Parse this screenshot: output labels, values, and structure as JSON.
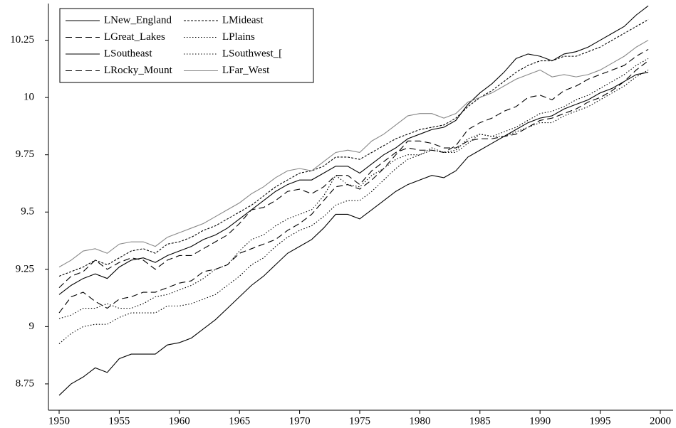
{
  "chart_data": {
    "type": "line",
    "x": [
      1950,
      1951,
      1952,
      1953,
      1954,
      1955,
      1956,
      1957,
      1958,
      1959,
      1960,
      1961,
      1962,
      1963,
      1964,
      1965,
      1966,
      1967,
      1968,
      1969,
      1970,
      1971,
      1972,
      1973,
      1974,
      1975,
      1976,
      1977,
      1978,
      1979,
      1980,
      1981,
      1982,
      1983,
      1984,
      1985,
      1986,
      1987,
      1988,
      1989,
      1990,
      1991,
      1992,
      1993,
      1994,
      1995,
      1996,
      1997,
      1998,
      1999
    ],
    "series": [
      {
        "name": "LNew_England",
        "color": "#000000",
        "style": "solid",
        "values": [
          9.14,
          9.18,
          9.21,
          9.23,
          9.21,
          9.26,
          9.29,
          9.3,
          9.28,
          9.31,
          9.33,
          9.35,
          9.38,
          9.4,
          9.43,
          9.47,
          9.51,
          9.55,
          9.59,
          9.62,
          9.64,
          9.64,
          9.67,
          9.7,
          9.7,
          9.67,
          9.71,
          9.75,
          9.78,
          9.82,
          9.84,
          9.86,
          9.87,
          9.9,
          9.97,
          10.02,
          10.06,
          10.11,
          10.17,
          10.19,
          10.18,
          10.16,
          10.19,
          10.2,
          10.22,
          10.25,
          10.28,
          10.31,
          10.36,
          10.4
        ]
      },
      {
        "name": "LMideast",
        "color": "#000000",
        "style": "finedash",
        "values": [
          9.22,
          9.24,
          9.26,
          9.29,
          9.27,
          9.3,
          9.33,
          9.34,
          9.32,
          9.36,
          9.37,
          9.39,
          9.42,
          9.44,
          9.47,
          9.5,
          9.53,
          9.57,
          9.61,
          9.64,
          9.67,
          9.68,
          9.7,
          9.74,
          9.74,
          9.73,
          9.76,
          9.79,
          9.82,
          9.84,
          9.86,
          9.87,
          9.88,
          9.91,
          9.96,
          10.0,
          10.03,
          10.07,
          10.11,
          10.14,
          10.16,
          10.16,
          10.18,
          10.18,
          10.2,
          10.22,
          10.25,
          10.28,
          10.31,
          10.34
        ]
      },
      {
        "name": "LGreat_Lakes",
        "color": "#000000",
        "style": "dashed",
        "values": [
          9.17,
          9.22,
          9.24,
          9.29,
          9.25,
          9.28,
          9.3,
          9.29,
          9.25,
          9.29,
          9.31,
          9.31,
          9.34,
          9.37,
          9.4,
          9.45,
          9.51,
          9.52,
          9.55,
          9.59,
          9.6,
          9.58,
          9.61,
          9.66,
          9.66,
          9.62,
          9.68,
          9.72,
          9.76,
          9.78,
          9.77,
          9.77,
          9.76,
          9.79,
          9.86,
          9.89,
          9.91,
          9.94,
          9.96,
          10.0,
          10.01,
          9.99,
          10.03,
          10.05,
          10.08,
          10.1,
          10.12,
          10.14,
          10.18,
          10.21
        ]
      },
      {
        "name": "LPlains",
        "color": "#000000",
        "style": "dotted",
        "values": [
          9.035,
          9.05,
          9.08,
          9.08,
          9.1,
          9.08,
          9.08,
          9.1,
          9.13,
          9.14,
          9.16,
          9.18,
          9.21,
          9.25,
          9.27,
          9.33,
          9.38,
          9.4,
          9.44,
          9.47,
          9.49,
          9.51,
          9.57,
          9.66,
          9.62,
          9.61,
          9.66,
          9.69,
          9.73,
          9.75,
          9.75,
          9.78,
          9.76,
          9.77,
          9.82,
          9.84,
          9.83,
          9.85,
          9.87,
          9.9,
          9.93,
          9.94,
          9.96,
          9.99,
          10.01,
          10.04,
          10.07,
          10.1,
          10.14,
          10.17
        ]
      },
      {
        "name": "LSoutheast",
        "color": "#000000",
        "style": "solid",
        "values": [
          8.7,
          8.75,
          8.78,
          8.82,
          8.8,
          8.86,
          8.88,
          8.88,
          8.88,
          8.92,
          8.93,
          8.95,
          8.99,
          9.03,
          9.08,
          9.13,
          9.18,
          9.22,
          9.27,
          9.32,
          9.35,
          9.38,
          9.43,
          9.49,
          9.49,
          9.47,
          9.51,
          9.55,
          9.59,
          9.62,
          9.64,
          9.66,
          9.65,
          9.68,
          9.74,
          9.77,
          9.8,
          9.83,
          9.86,
          9.89,
          9.91,
          9.92,
          9.95,
          9.97,
          9.99,
          10.02,
          10.04,
          10.07,
          10.1,
          10.11
        ]
      },
      {
        "name": "LSouthwest_[",
        "color": "#000000",
        "style": "dotted",
        "values": [
          8.925,
          8.97,
          9.0,
          9.01,
          9.01,
          9.04,
          9.06,
          9.06,
          9.06,
          9.09,
          9.09,
          9.1,
          9.12,
          9.14,
          9.18,
          9.22,
          9.27,
          9.3,
          9.35,
          9.39,
          9.42,
          9.44,
          9.48,
          9.53,
          9.55,
          9.55,
          9.59,
          9.64,
          9.69,
          9.73,
          9.75,
          9.77,
          9.76,
          9.76,
          9.8,
          9.84,
          9.83,
          9.83,
          9.85,
          9.87,
          9.89,
          9.89,
          9.92,
          9.94,
          9.96,
          9.99,
          10.02,
          10.05,
          10.09,
          10.12
        ]
      },
      {
        "name": "LRocky_Mount",
        "color": "#000000",
        "style": "dashed",
        "values": [
          9.06,
          9.13,
          9.15,
          9.11,
          9.08,
          9.12,
          9.13,
          9.15,
          9.15,
          9.17,
          9.19,
          9.2,
          9.24,
          9.25,
          9.27,
          9.32,
          9.34,
          9.36,
          9.38,
          9.42,
          9.45,
          9.49,
          9.55,
          9.61,
          9.62,
          9.6,
          9.64,
          9.69,
          9.75,
          9.81,
          9.81,
          9.8,
          9.78,
          9.78,
          9.81,
          9.82,
          9.82,
          9.83,
          9.84,
          9.87,
          9.9,
          9.91,
          9.93,
          9.95,
          9.98,
          10.0,
          10.03,
          10.07,
          10.12,
          10.16
        ]
      },
      {
        "name": "LFar_West",
        "color": "#888888",
        "style": "solid",
        "values": [
          9.26,
          9.29,
          9.33,
          9.34,
          9.32,
          9.36,
          9.37,
          9.37,
          9.35,
          9.39,
          9.41,
          9.43,
          9.45,
          9.48,
          9.51,
          9.54,
          9.58,
          9.61,
          9.65,
          9.68,
          9.69,
          9.68,
          9.72,
          9.76,
          9.77,
          9.76,
          9.81,
          9.84,
          9.88,
          9.92,
          9.93,
          9.93,
          9.91,
          9.93,
          9.98,
          10.0,
          10.02,
          10.05,
          10.08,
          10.1,
          10.12,
          10.09,
          10.1,
          10.09,
          10.1,
          10.12,
          10.15,
          10.18,
          10.22,
          10.25
        ]
      }
    ],
    "xlim": [
      1949.11,
      2001.07
    ],
    "xticks": [
      1950,
      1955,
      1960,
      1965,
      1970,
      1975,
      1980,
      1985,
      1990,
      1995,
      2000
    ],
    "ylim": [
      8.635,
      10.41
    ],
    "yticks": [
      8.75,
      9,
      9.25,
      9.5,
      9.75,
      10,
      10.25
    ],
    "legend": "upper-left"
  }
}
